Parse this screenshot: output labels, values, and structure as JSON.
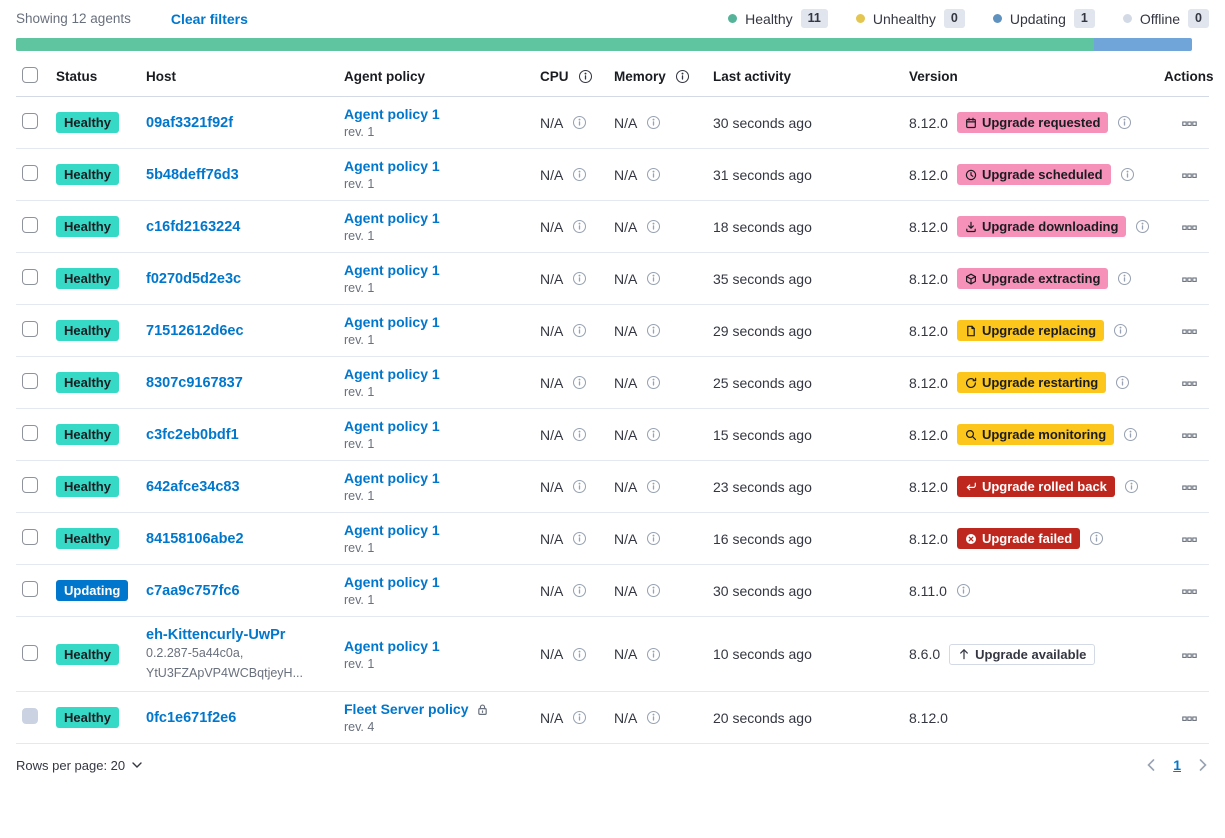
{
  "colors": {
    "link": "#0077CC",
    "healthy_badge": "#35D9C6",
    "updating_badge": "#0077CC",
    "pink_badge": "#F691B9",
    "yellow_badge": "#FDC61C",
    "red_badge": "#BD271E",
    "bar_green": "#5FC5A0",
    "bar_blue": "#6FA5D9",
    "dot_healthy": "#54B399",
    "dot_unhealthy": "#E3C54F",
    "dot_updating": "#6092C0",
    "dot_offline": "#D3DAE6",
    "dark_text": "#1A1C21",
    "light_text": "#FFFFFF"
  },
  "toolbar": {
    "showing_label": "Showing 12 agents",
    "clear_filters_label": "Clear filters",
    "legend": [
      {
        "label": "Healthy",
        "count": "11",
        "dot_key": "dot_healthy"
      },
      {
        "label": "Unhealthy",
        "count": "0",
        "dot_key": "dot_unhealthy"
      },
      {
        "label": "Updating",
        "count": "1",
        "dot_key": "dot_updating"
      },
      {
        "label": "Offline",
        "count": "0",
        "dot_key": "dot_offline"
      }
    ],
    "progress": {
      "green_pct": 91.7,
      "blue_pct": 8.3
    }
  },
  "table": {
    "headers": {
      "status": "Status",
      "host": "Host",
      "policy": "Agent policy",
      "cpu": "CPU",
      "memory": "Memory",
      "last_activity": "Last activity",
      "version": "Version",
      "actions": "Actions"
    },
    "rows": [
      {
        "status_label": "Healthy",
        "status_key": "healthy",
        "host": "09af3321f92f",
        "host_sub": [],
        "policy": "Agent policy 1",
        "policy_rev": "rev. 1",
        "policy_locked": false,
        "cpu": "N/A",
        "memory": "N/A",
        "last_activity": "30 seconds ago",
        "version": "8.12.0",
        "upgrade": {
          "label": "Upgrade requested",
          "icon": "calendar-icon",
          "variant": "pink"
        },
        "version_info": true,
        "checkbox_disabled": false
      },
      {
        "status_label": "Healthy",
        "status_key": "healthy",
        "host": "5b48deff76d3",
        "host_sub": [],
        "policy": "Agent policy 1",
        "policy_rev": "rev. 1",
        "policy_locked": false,
        "cpu": "N/A",
        "memory": "N/A",
        "last_activity": "31 seconds ago",
        "version": "8.12.0",
        "upgrade": {
          "label": "Upgrade scheduled",
          "icon": "clock-icon",
          "variant": "pink"
        },
        "version_info": true,
        "checkbox_disabled": false
      },
      {
        "status_label": "Healthy",
        "status_key": "healthy",
        "host": "c16fd2163224",
        "host_sub": [],
        "policy": "Agent policy 1",
        "policy_rev": "rev. 1",
        "policy_locked": false,
        "cpu": "N/A",
        "memory": "N/A",
        "last_activity": "18 seconds ago",
        "version": "8.12.0",
        "upgrade": {
          "label": "Upgrade downloading",
          "icon": "download-icon",
          "variant": "pink"
        },
        "version_info": true,
        "checkbox_disabled": false
      },
      {
        "status_label": "Healthy",
        "status_key": "healthy",
        "host": "f0270d5d2e3c",
        "host_sub": [],
        "policy": "Agent policy 1",
        "policy_rev": "rev. 1",
        "policy_locked": false,
        "cpu": "N/A",
        "memory": "N/A",
        "last_activity": "35 seconds ago",
        "version": "8.12.0",
        "upgrade": {
          "label": "Upgrade extracting",
          "icon": "package-icon",
          "variant": "pink"
        },
        "version_info": true,
        "checkbox_disabled": false
      },
      {
        "status_label": "Healthy",
        "status_key": "healthy",
        "host": "71512612d6ec",
        "host_sub": [],
        "policy": "Agent policy 1",
        "policy_rev": "rev. 1",
        "policy_locked": false,
        "cpu": "N/A",
        "memory": "N/A",
        "last_activity": "29 seconds ago",
        "version": "8.12.0",
        "upgrade": {
          "label": "Upgrade replacing",
          "icon": "document-icon",
          "variant": "yellow"
        },
        "version_info": true,
        "checkbox_disabled": false
      },
      {
        "status_label": "Healthy",
        "status_key": "healthy",
        "host": "8307c9167837",
        "host_sub": [],
        "policy": "Agent policy 1",
        "policy_rev": "rev. 1",
        "policy_locked": false,
        "cpu": "N/A",
        "memory": "N/A",
        "last_activity": "25 seconds ago",
        "version": "8.12.0",
        "upgrade": {
          "label": "Upgrade restarting",
          "icon": "refresh-icon",
          "variant": "yellow"
        },
        "version_info": true,
        "checkbox_disabled": false
      },
      {
        "status_label": "Healthy",
        "status_key": "healthy",
        "host": "c3fc2eb0bdf1",
        "host_sub": [],
        "policy": "Agent policy 1",
        "policy_rev": "rev. 1",
        "policy_locked": false,
        "cpu": "N/A",
        "memory": "N/A",
        "last_activity": "15 seconds ago",
        "version": "8.12.0",
        "upgrade": {
          "label": "Upgrade monitoring",
          "icon": "inspect-icon",
          "variant": "yellow"
        },
        "version_info": true,
        "checkbox_disabled": false
      },
      {
        "status_label": "Healthy",
        "status_key": "healthy",
        "host": "642afce34c83",
        "host_sub": [],
        "policy": "Agent policy 1",
        "policy_rev": "rev. 1",
        "policy_locked": false,
        "cpu": "N/A",
        "memory": "N/A",
        "last_activity": "23 seconds ago",
        "version": "8.12.0",
        "upgrade": {
          "label": "Upgrade rolled back",
          "icon": "return-icon",
          "variant": "red"
        },
        "version_info": true,
        "checkbox_disabled": false
      },
      {
        "status_label": "Healthy",
        "status_key": "healthy",
        "host": "84158106abe2",
        "host_sub": [],
        "policy": "Agent policy 1",
        "policy_rev": "rev. 1",
        "policy_locked": false,
        "cpu": "N/A",
        "memory": "N/A",
        "last_activity": "16 seconds ago",
        "version": "8.12.0",
        "upgrade": {
          "label": "Upgrade failed",
          "icon": "error-icon",
          "variant": "red"
        },
        "version_info": true,
        "checkbox_disabled": false
      },
      {
        "status_label": "Updating",
        "status_key": "updating",
        "host": "c7aa9c757fc6",
        "host_sub": [],
        "policy": "Agent policy 1",
        "policy_rev": "rev. 1",
        "policy_locked": false,
        "cpu": "N/A",
        "memory": "N/A",
        "last_activity": "30 seconds ago",
        "version": "8.11.0",
        "upgrade": null,
        "version_info": true,
        "checkbox_disabled": false
      },
      {
        "status_label": "Healthy",
        "status_key": "healthy",
        "host": "eh-Kittencurly-UwPr",
        "host_sub": [
          "0.2.287-5a44c0a,",
          "YtU3FZApVP4WCBqtjeyH..."
        ],
        "policy": "Agent policy 1",
        "policy_rev": "rev. 1",
        "policy_locked": false,
        "cpu": "N/A",
        "memory": "N/A",
        "last_activity": "10 seconds ago",
        "version": "8.6.0",
        "upgrade": {
          "label": "Upgrade available",
          "icon": "arrow-up-icon",
          "variant": "hollow"
        },
        "version_info": false,
        "checkbox_disabled": false
      },
      {
        "status_label": "Healthy",
        "status_key": "healthy",
        "host": "0fc1e671f2e6",
        "host_sub": [],
        "policy": "Fleet Server policy",
        "policy_rev": "rev. 4",
        "policy_locked": true,
        "cpu": "N/A",
        "memory": "N/A",
        "last_activity": "20 seconds ago",
        "version": "8.12.0",
        "upgrade": null,
        "version_info": false,
        "checkbox_disabled": true
      }
    ]
  },
  "footer": {
    "rows_per_page_label": "Rows per page: 20",
    "current_page": "1"
  }
}
